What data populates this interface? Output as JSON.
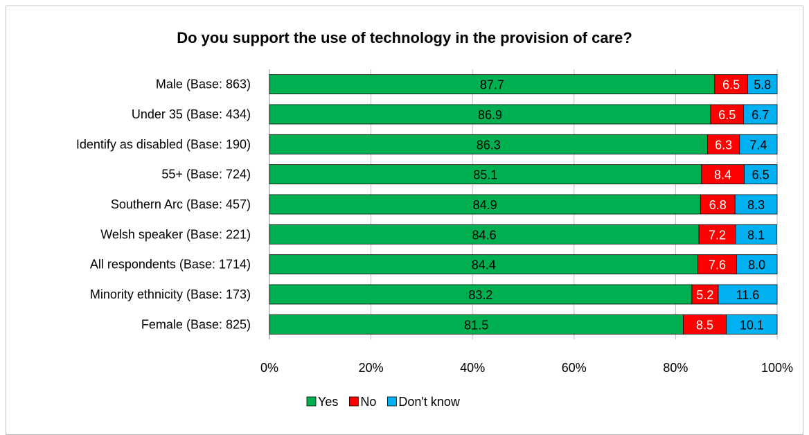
{
  "chart_data": {
    "type": "bar",
    "orientation": "horizontal",
    "stacked": true,
    "title": "Do you support the use of technology in the provision of care?",
    "categories": [
      "Male (Base: 863)",
      "Under 35 (Base: 434)",
      "Identify as disabled (Base: 190)",
      "55+ (Base: 724)",
      "Southern Arc (Base: 457)",
      "Welsh speaker (Base: 221)",
      "All respondents (Base: 1714)",
      "Minority ethnicity (Base: 173)",
      "Female (Base: 825)"
    ],
    "series": [
      {
        "name": "Yes",
        "color": "#00b050",
        "label_color": "#000000",
        "values": [
          87.7,
          86.9,
          86.3,
          85.1,
          84.9,
          84.6,
          84.4,
          83.2,
          81.5
        ]
      },
      {
        "name": "No",
        "color": "#ff0000",
        "label_color": "#ffffff",
        "values": [
          6.5,
          6.5,
          6.3,
          8.4,
          6.8,
          7.2,
          7.6,
          5.2,
          8.5
        ]
      },
      {
        "name": "Don't know",
        "color": "#00b0f0",
        "label_color": "#000000",
        "values": [
          5.8,
          6.7,
          7.4,
          6.5,
          8.3,
          8.1,
          8.0,
          11.6,
          10.1
        ]
      }
    ],
    "value_labels": [
      [
        "87.7",
        "86.9",
        "86.3",
        "85.1",
        "84.9",
        "84.6",
        "84.4",
        "83.2",
        "81.5"
      ],
      [
        "6.5",
        "6.5",
        "6.3",
        "8.4",
        "6.8",
        "7.2",
        "7.6",
        "5.2",
        "8.5"
      ],
      [
        "5.8",
        "6.7",
        "7.4",
        "6.5",
        "8.3",
        "8.1",
        "8.0",
        "11.6",
        "10.1"
      ]
    ],
    "xlim": [
      0,
      100
    ],
    "xticks": [
      "0%",
      "20%",
      "40%",
      "60%",
      "80%",
      "100%"
    ],
    "grid": true,
    "legend_position": "bottom"
  }
}
